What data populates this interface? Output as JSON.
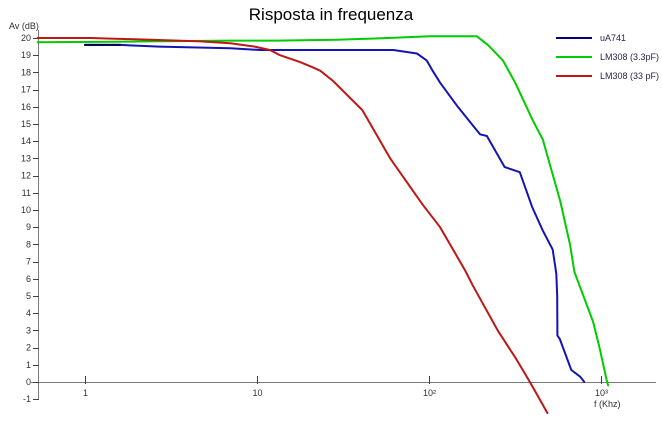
{
  "chart_data": {
    "type": "line",
    "title": "Risposta in frequenza",
    "xlabel": "f (Khz)",
    "ylabel": "Av (dB)",
    "x_scale": "log",
    "xlim": [
      0.53,
      2100
    ],
    "ylim": [
      -1,
      20
    ],
    "grid": false,
    "legend_position": "top-right",
    "yticks": [
      20,
      19,
      18,
      17,
      16,
      15,
      14,
      13,
      12,
      11,
      10,
      9,
      8,
      7,
      6,
      5,
      4,
      3,
      2,
      1,
      0,
      -1
    ],
    "xticks": [
      {
        "value": 1,
        "label": "1"
      },
      {
        "value": 10,
        "label": "10"
      },
      {
        "value": 100,
        "label": "10²"
      },
      {
        "value": 1000,
        "label": "10³"
      }
    ],
    "series": [
      {
        "name": "uA741",
        "color": "#1414b4",
        "legend_color": "#000080",
        "lead_color": "#000050",
        "points": [
          [
            1.0,
            19.6
          ],
          [
            1.6,
            19.6
          ],
          [
            2.7,
            19.5
          ],
          [
            7.0,
            19.4
          ],
          [
            10.4,
            19.3
          ],
          [
            30,
            19.3
          ],
          [
            62,
            19.3
          ],
          [
            85,
            19.1
          ],
          [
            97,
            18.7
          ],
          [
            105,
            18.1
          ],
          [
            116,
            17.4
          ],
          [
            147,
            16.0
          ],
          [
            198,
            14.4
          ],
          [
            217,
            14.3
          ],
          [
            275,
            12.5
          ],
          [
            337,
            12.2
          ],
          [
            397,
            10.2
          ],
          [
            459,
            8.8
          ],
          [
            524,
            7.7
          ],
          [
            550,
            6.3
          ],
          [
            556,
            5.0
          ],
          [
            558,
            2.7
          ],
          [
            576,
            2.5
          ],
          [
            672,
            0.7
          ],
          [
            758,
            0.3
          ],
          [
            800,
            0.0
          ]
        ]
      },
      {
        "name": "LM308 (3.3pF)",
        "color": "#00cc00",
        "points": [
          [
            0.53,
            19.75
          ],
          [
            2.4,
            19.8
          ],
          [
            7.0,
            19.85
          ],
          [
            13,
            19.85
          ],
          [
            29,
            19.9
          ],
          [
            58,
            20.0
          ],
          [
            101,
            20.1
          ],
          [
            190,
            20.1
          ],
          [
            220,
            19.6
          ],
          [
            269,
            18.7
          ],
          [
            317,
            17.4
          ],
          [
            402,
            15.2
          ],
          [
            459,
            14.1
          ],
          [
            580,
            10.5
          ],
          [
            660,
            8.0
          ],
          [
            700,
            6.4
          ],
          [
            900,
            3.5
          ],
          [
            985,
            1.9
          ],
          [
            1080,
            0.1
          ],
          [
            1100,
            -0.2
          ]
        ]
      },
      {
        "name": "LM308 (33 pF)",
        "color": "#c01616",
        "points": [
          [
            0.53,
            20.0
          ],
          [
            1.07,
            20.0
          ],
          [
            2.4,
            19.9
          ],
          [
            4.7,
            19.8
          ],
          [
            7.0,
            19.7
          ],
          [
            9.7,
            19.5
          ],
          [
            11.9,
            19.3
          ],
          [
            13.6,
            19.0
          ],
          [
            17.8,
            18.6
          ],
          [
            21,
            18.3
          ],
          [
            23.3,
            18.1
          ],
          [
            27.7,
            17.5
          ],
          [
            41,
            15.8
          ],
          [
            59.5,
            13.0
          ],
          [
            92,
            10.3
          ],
          [
            116,
            9.0
          ],
          [
            162,
            6.5
          ],
          [
            180,
            5.6
          ],
          [
            251,
            3.0
          ],
          [
            323,
            1.3
          ],
          [
            391,
            -0.1
          ],
          [
            488,
            -1.8
          ]
        ]
      }
    ]
  },
  "colors": {
    "background": "#ffffff",
    "axis": "#7a7a7a",
    "tick": "#404040",
    "tick_text": "#303030",
    "legend_text": "#26264d",
    "title": "#000000"
  }
}
